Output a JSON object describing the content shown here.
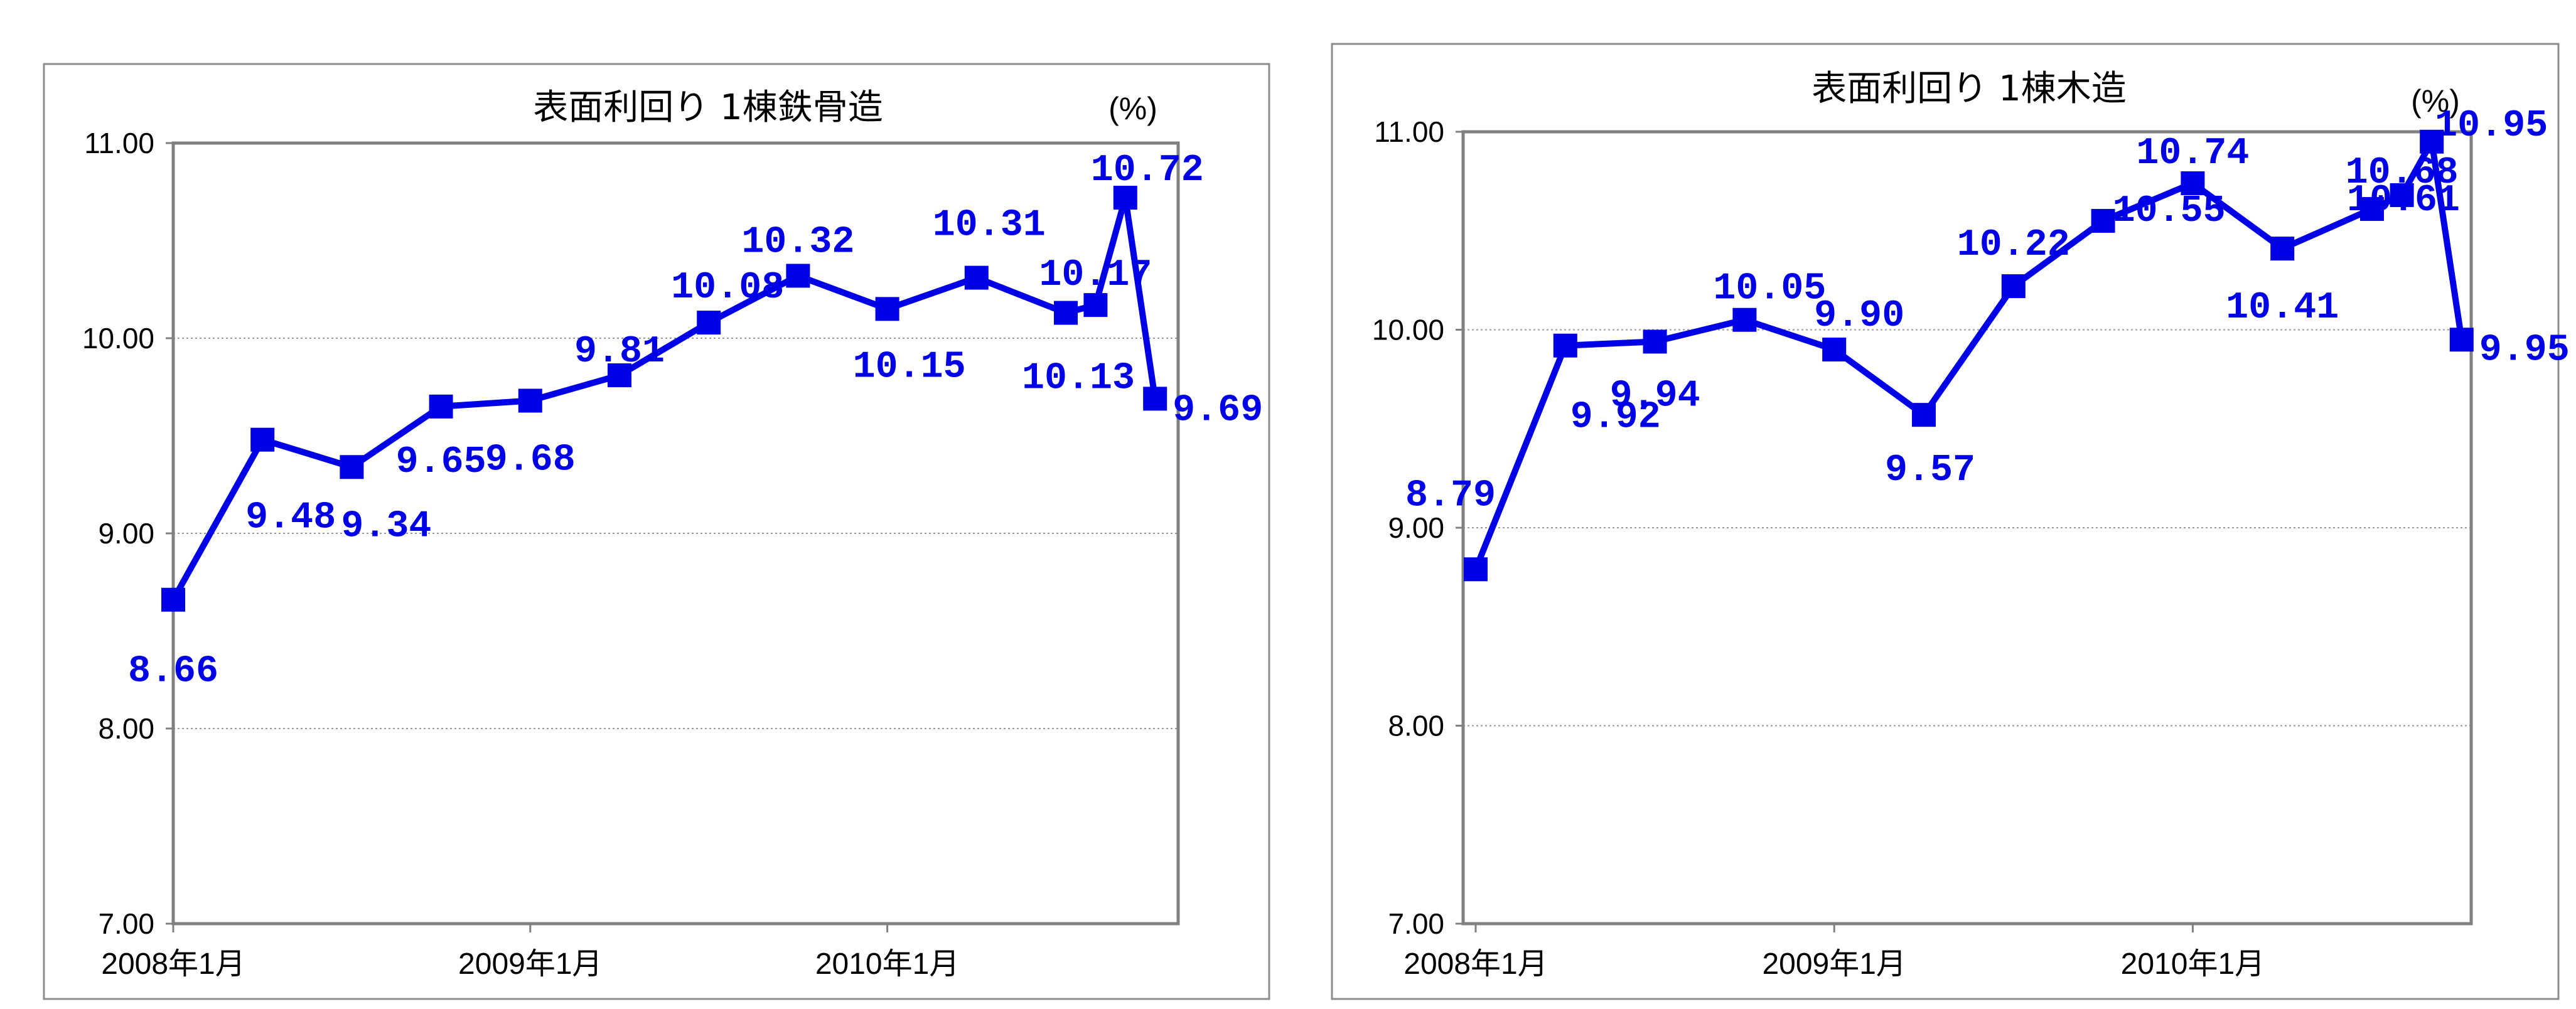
{
  "chart_data": [
    {
      "type": "line",
      "title": "表面利回り 1棟鉄骨造",
      "unit_label": "(%)",
      "x_tick_labels": [
        "2008年1月",
        "2009年1月",
        "2010年1月"
      ],
      "y_tick_labels": [
        "11.00",
        "10.00",
        "9.00",
        "8.00",
        "7.00"
      ],
      "ylim": [
        7.0,
        11.0
      ],
      "grid": true,
      "color": "#0000e6",
      "series": [
        {
          "x": [
            "2008-01",
            "2008-04",
            "2008-07",
            "2008-10",
            "2009-01",
            "2009-04",
            "2009-07",
            "2009-10",
            "2010-01",
            "2010-04",
            "2010-07",
            "2010-08",
            "2010-09",
            "2010-10"
          ],
          "values": [
            8.66,
            9.48,
            9.34,
            9.65,
            9.68,
            9.81,
            10.08,
            10.32,
            10.15,
            10.31,
            10.13,
            10.17,
            10.72,
            9.69
          ],
          "labels": [
            "8.66",
            "9.48",
            "9.34",
            "9.65",
            "9.68",
            "9.81",
            "10.08",
            "10.32",
            "10.15",
            "10.31",
            "10.13",
            "10.17",
            "10.72",
            "9.69"
          ]
        }
      ]
    },
    {
      "type": "line",
      "title": "表面利回り 1棟木造",
      "unit_label": "(%)",
      "x_tick_labels": [
        "2008年1月",
        "2009年1月",
        "2010年1月"
      ],
      "y_tick_labels": [
        "11.00",
        "10.00",
        "9.00",
        "8.00",
        "7.00"
      ],
      "ylim": [
        7.0,
        11.0
      ],
      "grid": true,
      "color": "#0000e6",
      "series": [
        {
          "x": [
            "2008-01",
            "2008-04",
            "2008-07",
            "2008-10",
            "2009-01",
            "2009-04",
            "2009-07",
            "2009-10",
            "2010-01",
            "2010-04",
            "2010-07",
            "2010-08",
            "2010-09",
            "2010-10"
          ],
          "values": [
            8.79,
            9.92,
            9.94,
            10.05,
            9.9,
            9.57,
            10.22,
            10.55,
            10.74,
            10.41,
            10.61,
            10.68,
            10.95,
            9.95
          ],
          "labels": [
            "8.79",
            "9.92",
            "9.94",
            "10.05",
            "9.90",
            "9.57",
            "10.22",
            "10.55",
            "10.74",
            "10.41",
            "10.61",
            "10.68",
            "10.95",
            "9.95"
          ]
        }
      ]
    }
  ]
}
